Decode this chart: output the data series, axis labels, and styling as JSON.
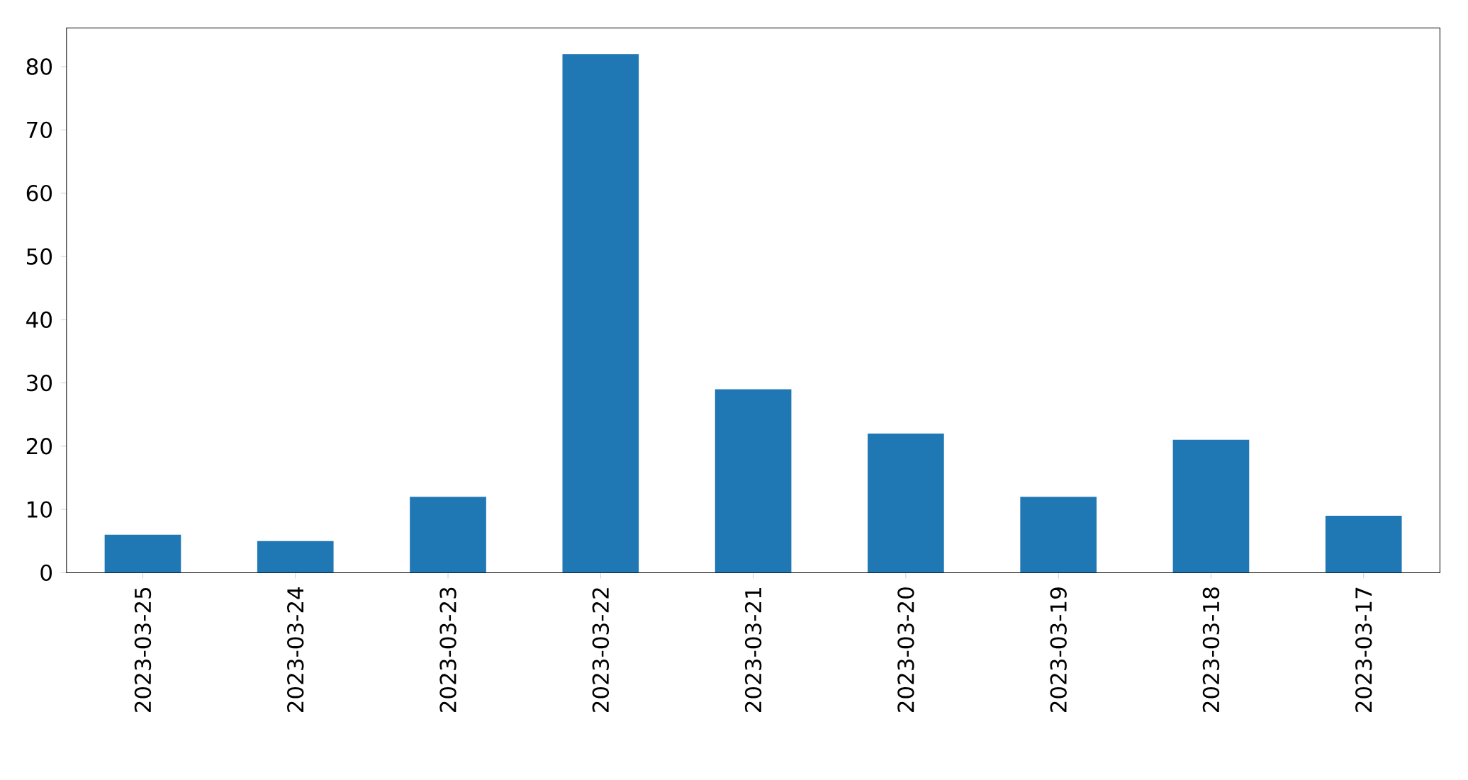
{
  "chart_data": {
    "type": "bar",
    "categories": [
      "2023-03-25",
      "2023-03-24",
      "2023-03-23",
      "2023-03-22",
      "2023-03-21",
      "2023-03-20",
      "2023-03-19",
      "2023-03-18",
      "2023-03-17"
    ],
    "values": [
      6,
      5,
      12,
      82,
      29,
      22,
      12,
      21,
      9
    ],
    "color": "#1f77b4",
    "ylim": [
      0,
      86.1
    ],
    "yticks": [
      0,
      10,
      20,
      30,
      40,
      50,
      60,
      70,
      80
    ]
  }
}
